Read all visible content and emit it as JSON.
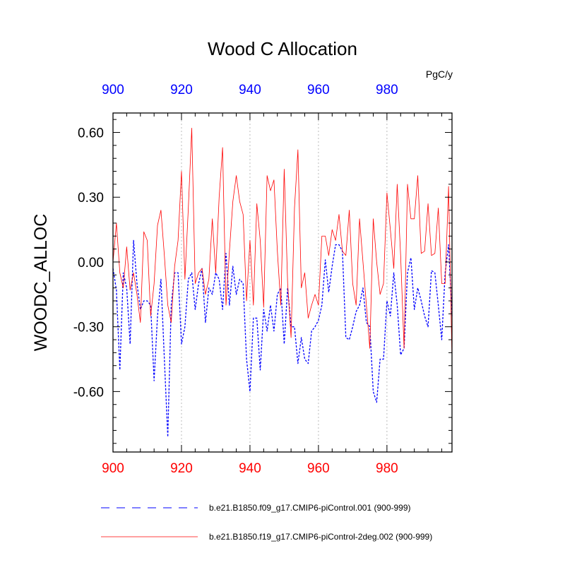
{
  "chart_data": {
    "type": "line",
    "title": "Wood C Allocation",
    "units": "PgC/y",
    "ylabel": "WOODC_ALLOC",
    "xlabel": "",
    "xlim": [
      900,
      999
    ],
    "ylim": [
      -0.88,
      0.69
    ],
    "xticks": [
      900,
      920,
      940,
      960,
      980
    ],
    "xtick_labels": [
      "900",
      "920",
      "940",
      "960",
      "980"
    ],
    "yticks": [
      0.6,
      0.3,
      0.0,
      -0.3,
      -0.6
    ],
    "ytick_labels": [
      "0.60",
      "0.30",
      "0.00",
      "-0.30",
      "-0.60"
    ],
    "vertical_gridlines_at": [
      920,
      940,
      960,
      980
    ],
    "colors": {
      "bottom_axis_labels": "#ff0000",
      "top_axis_labels": "#0000ff",
      "gridline": "#bbbbbb"
    },
    "series": [
      {
        "name": "b.e21.B1850.f09_g17.CMIP6-piControl.001 (900-999)",
        "color": "#0000ff",
        "style": "dashed",
        "x_start": 900,
        "values": [
          -0.03,
          -0.13,
          -0.5,
          -0.05,
          -0.12,
          -0.38,
          0.1,
          -0.1,
          -0.22,
          -0.18,
          -0.18,
          -0.2,
          -0.55,
          -0.25,
          -0.08,
          -0.45,
          -0.81,
          -0.2,
          -0.05,
          -0.05,
          -0.38,
          -0.3,
          -0.08,
          -0.05,
          -0.22,
          -0.1,
          -0.03,
          -0.28,
          -0.12,
          -0.15,
          -0.05,
          -0.08,
          -0.22,
          0.04,
          -0.2,
          -0.02,
          -0.15,
          -0.08,
          -0.1,
          -0.45,
          -0.6,
          -0.26,
          -0.26,
          -0.5,
          -0.22,
          -0.32,
          -0.2,
          -0.32,
          -0.15,
          -0.12,
          -0.38,
          -0.12,
          -0.3,
          -0.3,
          -0.47,
          -0.35,
          -0.45,
          -0.47,
          -0.32,
          -0.3,
          -0.27,
          -0.2,
          0.01,
          -0.14,
          -0.02,
          0.08,
          0.08,
          0.05,
          -0.35,
          -0.36,
          -0.3,
          -0.23,
          -0.2,
          -0.12,
          -0.28,
          -0.3,
          -0.6,
          -0.65,
          -0.45,
          -0.45,
          -0.18,
          -0.25,
          -0.05,
          -0.2,
          -0.43,
          -0.4,
          -0.05,
          0.02,
          -0.22,
          -0.12,
          -0.18,
          -0.25,
          -0.3,
          -0.04,
          -0.05,
          -0.2,
          -0.36,
          -0.05,
          0.08,
          -0.25
        ]
      },
      {
        "name": "b.e21.B1850.f19_g17.CMIP6-piControl-2deg.002 (900-999)",
        "color": "#ff0000",
        "style": "solid",
        "x_start": 900,
        "values": [
          0.0,
          0.18,
          -0.05,
          -0.12,
          0.07,
          -0.13,
          -0.05,
          -0.15,
          -0.28,
          0.14,
          0.1,
          -0.25,
          -0.1,
          0.17,
          0.24,
          0.03,
          -0.2,
          -0.28,
          -0.02,
          0.1,
          0.42,
          -0.08,
          0.25,
          0.62,
          -0.1,
          -0.05,
          -0.03,
          -0.15,
          -0.08,
          0.2,
          -0.05,
          0.3,
          0.53,
          -0.2,
          0.05,
          0.28,
          0.4,
          0.28,
          0.22,
          -0.18,
          0.1,
          -0.2,
          0.27,
          0.1,
          -0.21,
          0.4,
          0.33,
          0.38,
          0.05,
          -0.2,
          0.43,
          -0.1,
          -0.35,
          0.25,
          0.52,
          -0.12,
          -0.05,
          -0.26,
          -0.2,
          -0.15,
          -0.2,
          0.12,
          0.12,
          0.03,
          0.15,
          0.1,
          0.22,
          0.05,
          0.03,
          0.24,
          -0.1,
          -0.2,
          0.2,
          0.0,
          -0.2,
          -0.4,
          0.2,
          0.0,
          -0.15,
          -0.1,
          0.32,
          0.15,
          -0.03,
          0.36,
          0.03,
          -0.4,
          0.36,
          0.2,
          0.2,
          0.4,
          0.04,
          0.05,
          0.27,
          0.03,
          0.04,
          0.25,
          -0.1,
          -0.1,
          0.35,
          -0.45
        ]
      }
    ]
  }
}
